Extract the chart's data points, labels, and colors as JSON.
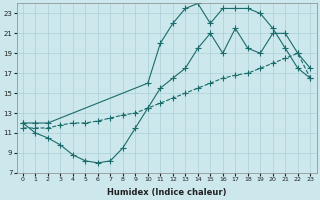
{
  "xlabel": "Humidex (Indice chaleur)",
  "bg_color": "#cce8ec",
  "grid_color": "#aacfd6",
  "line_color": "#1a6b6b",
  "xlim": [
    -0.5,
    23.5
  ],
  "ylim": [
    7,
    24
  ],
  "xticks": [
    0,
    1,
    2,
    3,
    4,
    5,
    6,
    7,
    8,
    9,
    10,
    11,
    12,
    13,
    14,
    15,
    16,
    17,
    18,
    19,
    20,
    21,
    22,
    23
  ],
  "yticks": [
    7,
    9,
    11,
    13,
    15,
    17,
    19,
    21,
    23
  ],
  "series1_x": [
    0,
    1,
    2,
    3,
    4,
    5,
    6,
    7,
    8,
    9,
    10,
    11,
    12,
    13,
    14,
    15,
    16,
    17,
    18,
    19,
    20,
    21,
    22,
    23
  ],
  "series1_y": [
    12.0,
    11.0,
    10.5,
    9.8,
    8.8,
    8.2,
    8.0,
    8.2,
    9.5,
    11.5,
    13.5,
    15.5,
    16.5,
    17.5,
    19.5,
    21.0,
    19.0,
    21.5,
    19.5,
    19.0,
    21.0,
    21.0,
    19.0,
    17.5
  ],
  "series2_x": [
    0,
    1,
    2,
    3,
    4,
    5,
    6,
    7,
    8,
    9,
    10,
    11,
    12,
    13,
    14,
    15,
    16,
    17,
    18,
    19,
    20,
    21,
    22,
    23
  ],
  "series2_y": [
    11.5,
    11.5,
    11.5,
    11.8,
    12.0,
    12.0,
    12.2,
    12.5,
    12.8,
    13.0,
    13.5,
    14.0,
    14.5,
    15.0,
    15.5,
    16.0,
    16.5,
    16.8,
    17.0,
    17.5,
    18.0,
    18.5,
    19.0,
    16.5
  ],
  "series3_x": [
    0,
    1,
    2,
    10,
    11,
    12,
    13,
    14,
    15,
    16,
    17,
    18,
    19,
    20,
    21,
    22,
    23
  ],
  "series3_y": [
    12.0,
    12.0,
    12.0,
    16.0,
    20.0,
    22.0,
    23.5,
    24.0,
    22.0,
    23.5,
    23.5,
    23.5,
    23.0,
    21.5,
    19.5,
    17.5,
    16.5
  ]
}
